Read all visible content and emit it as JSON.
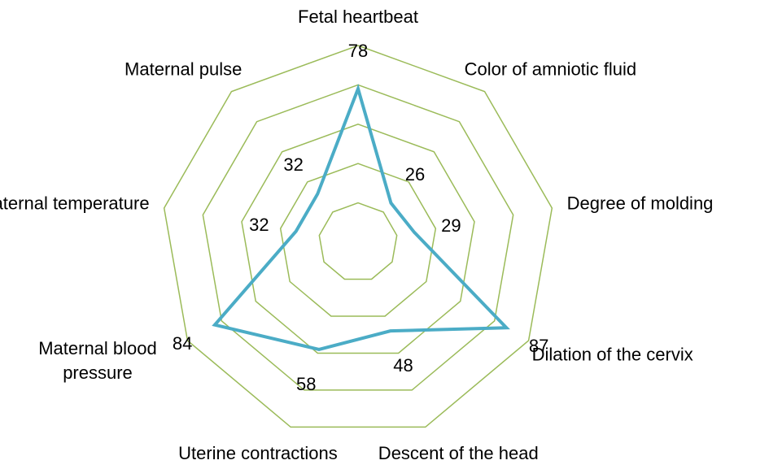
{
  "chart_data": {
    "type": "radar",
    "categories": [
      "Fetal heartbeat",
      "Color of amniotic fluid",
      "Degree of molding",
      "Dilation of the cervix",
      "Descent of the head",
      "Uterine contractions",
      "Maternal blood pressure",
      "Maternal temperature",
      "Maternal pulse"
    ],
    "values": [
      78,
      26,
      29,
      87,
      48,
      58,
      84,
      32,
      32
    ],
    "color": "#4bacc6",
    "grid_color": "#9bbb59",
    "rlim": [
      0,
      100
    ],
    "rticks": [
      20,
      40,
      60,
      80,
      100
    ],
    "grid": true
  }
}
